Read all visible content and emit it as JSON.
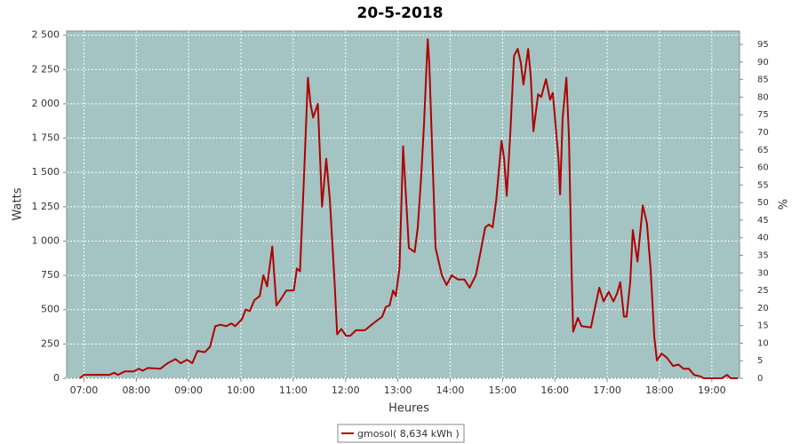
{
  "chart_data": {
    "type": "line",
    "title": "20-5-2018",
    "x_label": "Heures",
    "y_label": "Watts",
    "y2_label": "%",
    "x": [
      6.92,
      7.0,
      7.49,
      7.58,
      7.65,
      7.78,
      7.95,
      8.05,
      8.12,
      8.22,
      8.46,
      8.6,
      8.75,
      8.85,
      8.97,
      9.07,
      9.17,
      9.31,
      9.41,
      9.51,
      9.61,
      9.72,
      9.82,
      9.89,
      10.02,
      10.09,
      10.17,
      10.26,
      10.36,
      10.43,
      10.5,
      10.6,
      10.68,
      10.77,
      10.87,
      11.01,
      11.07,
      11.13,
      11.21,
      11.28,
      11.33,
      11.38,
      11.47,
      11.55,
      11.63,
      11.7,
      11.79,
      11.84,
      11.92,
      12.01,
      12.09,
      12.2,
      12.37,
      12.53,
      12.7,
      12.77,
      12.84,
      12.91,
      12.96,
      13.03,
      13.1,
      13.21,
      13.32,
      13.38,
      13.45,
      13.5,
      13.57,
      13.6,
      13.67,
      13.72,
      13.84,
      13.93,
      14.03,
      14.15,
      14.27,
      14.37,
      14.49,
      14.57,
      14.67,
      14.74,
      14.81,
      14.88,
      14.98,
      15.03,
      15.08,
      15.15,
      15.22,
      15.29,
      15.35,
      15.4,
      15.49,
      15.54,
      15.59,
      15.68,
      15.74,
      15.83,
      15.91,
      15.96,
      16.07,
      16.1,
      16.15,
      16.22,
      16.27,
      16.32,
      16.35,
      16.44,
      16.51,
      16.69,
      16.76,
      16.85,
      16.93,
      17.03,
      17.12,
      17.19,
      17.25,
      17.32,
      17.37,
      17.44,
      17.49,
      17.58,
      17.68,
      17.76,
      17.83,
      17.9,
      17.95,
      18.04,
      18.14,
      18.26,
      18.36,
      18.46,
      18.56,
      18.66,
      18.77,
      18.85,
      19.19,
      19.29,
      19.36,
      19.5
    ],
    "series": [
      {
        "name": "gmosol( 8,634 kWh )",
        "color": "#b00000",
        "values": [
          0,
          25,
          25,
          40,
          25,
          50,
          50,
          70,
          55,
          75,
          70,
          110,
          140,
          110,
          135,
          110,
          200,
          190,
          230,
          380,
          390,
          380,
          400,
          380,
          430,
          500,
          490,
          570,
          600,
          750,
          670,
          960,
          530,
          580,
          640,
          640,
          800,
          780,
          1500,
          2190,
          2000,
          1900,
          2000,
          1250,
          1600,
          1300,
          700,
          320,
          360,
          310,
          310,
          350,
          350,
          400,
          450,
          520,
          530,
          640,
          600,
          800,
          1690,
          950,
          920,
          1100,
          1500,
          1850,
          2470,
          2300,
          1500,
          950,
          750,
          680,
          750,
          720,
          720,
          660,
          750,
          900,
          1100,
          1120,
          1100,
          1300,
          1730,
          1600,
          1330,
          1800,
          2350,
          2400,
          2300,
          2140,
          2400,
          2200,
          1800,
          2070,
          2050,
          2180,
          2030,
          2080,
          1600,
          1340,
          1900,
          2190,
          1750,
          800,
          340,
          440,
          380,
          370,
          500,
          660,
          560,
          630,
          560,
          620,
          700,
          450,
          450,
          700,
          1080,
          850,
          1260,
          1130,
          800,
          300,
          130,
          180,
          150,
          90,
          100,
          70,
          70,
          25,
          15,
          0,
          0,
          25,
          0,
          0
        ]
      }
    ],
    "xlim": [
      6.67,
      19.53
    ],
    "xticks": [
      {
        "value": 7,
        "label": "07:00"
      },
      {
        "value": 8,
        "label": "08:00"
      },
      {
        "value": 9,
        "label": "09:00"
      },
      {
        "value": 10,
        "label": "10:00"
      },
      {
        "value": 11,
        "label": "11:00"
      },
      {
        "value": 12,
        "label": "12:00"
      },
      {
        "value": 13,
        "label": "13:00"
      },
      {
        "value": 14,
        "label": "14:00"
      },
      {
        "value": 15,
        "label": "15:00"
      },
      {
        "value": 16,
        "label": "16:00"
      },
      {
        "value": 17,
        "label": "17:00"
      },
      {
        "value": 18,
        "label": "18:00"
      },
      {
        "value": 19,
        "label": "19:00"
      }
    ],
    "ylim": [
      0,
      2530
    ],
    "yticks": [
      0,
      250,
      500,
      750,
      {
        "value": 1000,
        "label": "1 000"
      },
      {
        "value": 1250,
        "label": "1 250"
      },
      {
        "value": 1500,
        "label": "1 500"
      },
      {
        "value": 1750,
        "label": "1 750"
      },
      {
        "value": 2000,
        "label": "2 000"
      },
      {
        "value": 2250,
        "label": "2 250"
      },
      {
        "value": 2500,
        "label": "2 500"
      }
    ],
    "y2lim": [
      0,
      98.8
    ],
    "y2ticks": [
      0,
      5,
      10,
      15,
      20,
      25,
      30,
      35,
      40,
      45,
      50,
      55,
      60,
      65,
      70,
      75,
      80,
      85,
      90,
      95
    ],
    "grid": true,
    "background": "#a3c4c3",
    "legend": "bottom"
  }
}
